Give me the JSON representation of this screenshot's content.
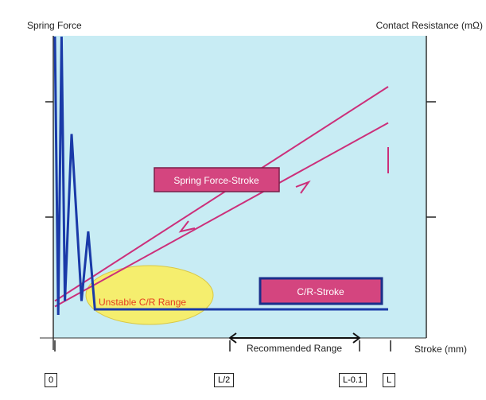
{
  "chart_data": {
    "type": "line",
    "left_axis_label": "Spring Force",
    "right_axis_label": "Contact Resistance (mΩ)",
    "x_axis_label": "Stroke (mm)",
    "x_tick_labels": [
      "0",
      "L/2",
      "L-0.1",
      "L"
    ],
    "annotations": {
      "spring_force_stroke": "Spring Force-Stroke",
      "cr_stroke": "C/R-Stroke",
      "unstable": "Unstable C/R Range",
      "recommended": "Recommended Range"
    },
    "series": [
      {
        "name": "Spring Force-Stroke",
        "type": "hysteresis-loop",
        "loading": [
          [
            0.0,
            0.05
          ],
          [
            1.0,
            0.82
          ]
        ],
        "unloading": [
          [
            1.0,
            0.69
          ],
          [
            0.0,
            0.03
          ]
        ]
      },
      {
        "name": "C/R-Stroke",
        "points": [
          [
            0.0,
            1.0
          ],
          [
            0.01,
            0.0
          ],
          [
            0.02,
            1.0
          ],
          [
            0.03,
            0.05
          ],
          [
            0.05,
            0.65
          ],
          [
            0.08,
            0.05
          ],
          [
            0.1,
            0.3
          ],
          [
            0.12,
            0.02
          ],
          [
            1.0,
            0.02
          ]
        ]
      }
    ],
    "colors": {
      "plot_bg": "#c8ecf4",
      "spring_line": "#cc2f7a",
      "cr_line": "#1a3aa8",
      "unstable_fill": "#f5ee6e",
      "unstable_text": "#e53c20",
      "label_box_fill": "#d4457f"
    }
  }
}
